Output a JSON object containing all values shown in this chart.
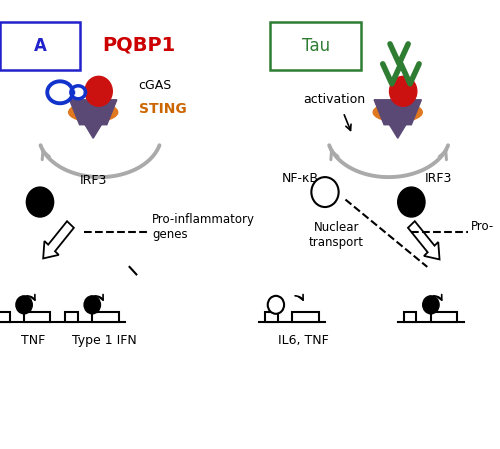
{
  "bg_color": "#ffffff",
  "left_box_text": "A",
  "left_box_color": "#2222cc",
  "right_box_text": "Tau",
  "right_box_color": "#2e7d32",
  "pqbp1_text": "PQBP1",
  "pqbp1_color": "#cc0000",
  "cgas_text": "cGAS",
  "sting_text": "STING",
  "sting_color": "#cc6600",
  "activation_text": "activation",
  "nfkb_text": "NF-κB",
  "irf3_text": "IRF3",
  "pro_inflam_text": "Pro-inflammatory\ngenes",
  "nuclear_transport_text": "Nuclear\ntransport",
  "pro_right_text": "Pro-",
  "tnf_text": "TNF",
  "type1ifn_text": "Type 1 IFN",
  "il6tnf_text": "IL6, TNF",
  "figsize": [
    5.0,
    4.49
  ],
  "dpi": 100,
  "purple_color": "#5a4875",
  "orange_color": "#e07820",
  "red_color": "#cc1111",
  "blue_color": "#1133cc",
  "green_color": "#2e7d32",
  "gray_color": "#aaaaaa"
}
